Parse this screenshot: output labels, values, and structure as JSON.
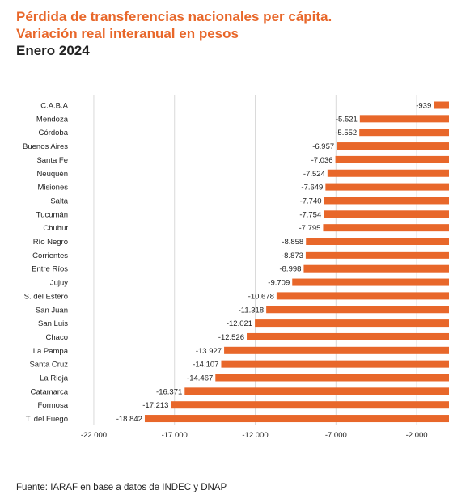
{
  "title_line1": "Pérdida de transferencias nacionales per cápita.",
  "title_line2": "Variación real interanual en pesos",
  "subtitle": "Enero 2024",
  "source": "Fuente: IARAF en base a datos de INDEC y DNAP",
  "colors": {
    "bar": "#e8672a",
    "title_accent": "#e8672a",
    "text": "#222222",
    "grid": "#d9d9d9"
  },
  "chart_data": {
    "type": "bar",
    "orientation": "horizontal",
    "categories": [
      "C.A.B.A",
      "Mendoza",
      "Córdoba",
      "Buenos Aires",
      "Santa Fe",
      "Neuquén",
      "Misiones",
      "Salta",
      "Tucumán",
      "Chubut",
      "Río Negro",
      "Corrientes",
      "Entre Ríos",
      "Jujuy",
      "S. del Estero",
      "San Juan",
      "San Luis",
      "Chaco",
      "La Pampa",
      "Santa Cruz",
      "La Rioja",
      "Catamarca",
      "Formosa",
      "T. del Fuego"
    ],
    "values": [
      -939,
      -5521,
      -5552,
      -6957,
      -7036,
      -7524,
      -7649,
      -7740,
      -7754,
      -7795,
      -8858,
      -8873,
      -8998,
      -9709,
      -10678,
      -11318,
      -12021,
      -12526,
      -13927,
      -14107,
      -14467,
      -16371,
      -17213,
      -18842
    ],
    "value_labels": [
      "-939",
      "-5.521",
      "-5.552",
      "-6.957",
      "-7.036",
      "-7.524",
      "-7.649",
      "-7.740",
      "-7.754",
      "-7.795",
      "-8.858",
      "-8.873",
      "-8.998",
      "-9.709",
      "-10.678",
      "-11.318",
      "-12.021",
      "-12.526",
      "-13.927",
      "-14.107",
      "-14.467",
      "-16.371",
      "-17.213",
      "-18.842"
    ],
    "xticks": [
      -22000,
      -17000,
      -12000,
      -7000,
      -2000
    ],
    "xtick_labels": [
      "-22.000",
      "-17.000",
      "-12.000",
      "-7.000",
      "-2.000"
    ],
    "xlim": [
      -23000,
      0
    ],
    "grid": true,
    "title": "Pérdida de transferencias nacionales per cápita. Variación real interanual en pesos",
    "subtitle": "Enero 2024",
    "xlabel": "",
    "ylabel": ""
  }
}
